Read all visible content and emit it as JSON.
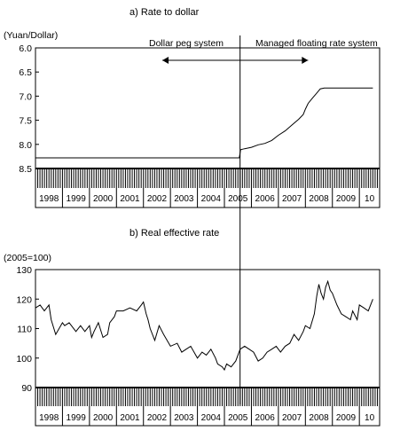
{
  "chart_data": [
    {
      "type": "line",
      "title": "a) Rate to dollar",
      "ylabel": "(Yuan/Dollar)",
      "xlabel": "",
      "y_inverted": true,
      "ylim": [
        8.5,
        6.0
      ],
      "yticks": [
        6.0,
        6.5,
        7.0,
        7.5,
        8.0,
        8.5
      ],
      "ytick_labels": [
        "6.0",
        "6.5",
        "7.0",
        "7.5",
        "8.0",
        "8.5"
      ],
      "xlim": [
        1998.0,
        2010.75
      ],
      "xtick_labels": [
        "1998",
        "1999",
        "2000",
        "2001",
        "2002",
        "2003",
        "2004",
        "2005",
        "2006",
        "2007",
        "2008",
        "2009",
        "10"
      ],
      "grid": false,
      "annotations": [
        {
          "text": "Dollar peg system",
          "arrow": "both",
          "from_x": 2002.7,
          "to_x": 2005.58
        },
        {
          "text": "Managed floating rate system",
          "arrow": "both",
          "from_x": 2005.58,
          "to_x": 2008.1
        }
      ],
      "vline_x": 2005.58,
      "series": [
        {
          "x": [
            1998.0,
            1999.0,
            2000.0,
            2001.0,
            2002.0,
            2003.0,
            2004.0,
            2005.0,
            2005.55,
            2005.6,
            2005.75,
            2006.0,
            2006.25,
            2006.5,
            2006.75,
            2007.0,
            2007.25,
            2007.5,
            2007.75,
            2007.92,
            2008.0,
            2008.1,
            2008.25,
            2008.4,
            2008.55,
            2008.7,
            2009.0,
            2009.5,
            2010.0,
            2010.5
          ],
          "values": [
            8.28,
            8.28,
            8.28,
            8.28,
            8.28,
            8.28,
            8.28,
            8.28,
            8.28,
            8.11,
            8.09,
            8.06,
            8.01,
            7.98,
            7.92,
            7.81,
            7.72,
            7.6,
            7.48,
            7.38,
            7.27,
            7.15,
            7.05,
            6.95,
            6.85,
            6.83,
            6.83,
            6.83,
            6.83,
            6.83
          ]
        }
      ]
    },
    {
      "type": "line",
      "title": "b) Real effective rate",
      "ylabel": "(2005=100)",
      "xlabel": "",
      "ylim": [
        90,
        130
      ],
      "yticks": [
        90,
        100,
        110,
        120,
        130
      ],
      "ytick_labels": [
        "90",
        "100",
        "110",
        "120",
        "130"
      ],
      "xlim": [
        1998.0,
        2010.75
      ],
      "xtick_labels": [
        "1998",
        "1999",
        "2000",
        "2001",
        "2002",
        "2003",
        "2004",
        "2005",
        "2006",
        "2007",
        "2008",
        "2009",
        "10"
      ],
      "grid": false,
      "vline_x": 2005.58,
      "series": [
        {
          "x": [
            1998.0,
            1998.17,
            1998.33,
            1998.5,
            1998.58,
            1998.75,
            1999.0,
            1999.08,
            1999.25,
            1999.5,
            1999.67,
            1999.83,
            2000.0,
            2000.08,
            2000.17,
            2000.33,
            2000.5,
            2000.67,
            2000.75,
            2000.92,
            2001.0,
            2001.25,
            2001.5,
            2001.75,
            2001.92,
            2002.0,
            2002.1,
            2002.17,
            2002.25,
            2002.42,
            2002.58,
            2002.75,
            2003.0,
            2003.25,
            2003.42,
            2003.58,
            2003.75,
            2004.0,
            2004.17,
            2004.33,
            2004.5,
            2004.67,
            2004.75,
            2004.92,
            2005.0,
            2005.08,
            2005.25,
            2005.42,
            2005.58,
            2005.75,
            2005.92,
            2006.08,
            2006.25,
            2006.42,
            2006.58,
            2006.75,
            2006.92,
            2007.08,
            2007.25,
            2007.42,
            2007.58,
            2007.75,
            2007.92,
            2008.0,
            2008.17,
            2008.33,
            2008.42,
            2008.5,
            2008.58,
            2008.67,
            2008.75,
            2008.83,
            2008.92,
            2009.0,
            2009.17,
            2009.33,
            2009.5,
            2009.67,
            2009.75,
            2009.92,
            2010.0,
            2010.17,
            2010.33,
            2010.5
          ],
          "values": [
            117,
            118,
            116,
            118,
            113,
            108,
            112,
            111,
            112,
            109,
            111,
            109,
            111,
            107,
            109,
            112,
            107,
            108,
            112,
            114,
            116,
            116,
            117,
            116,
            118,
            119,
            115,
            113,
            110,
            106,
            111,
            108,
            104,
            105,
            102,
            103,
            104,
            100,
            102,
            101,
            103,
            100,
            98,
            97,
            96,
            98,
            97,
            99,
            103,
            104,
            103,
            102,
            99,
            100,
            102,
            103,
            104,
            102,
            104,
            105,
            108,
            106,
            109,
            111,
            110,
            115,
            121,
            125,
            122,
            120,
            124,
            126,
            123,
            122,
            118,
            115,
            114,
            113,
            116,
            113,
            118,
            117,
            116,
            120
          ]
        }
      ]
    }
  ]
}
